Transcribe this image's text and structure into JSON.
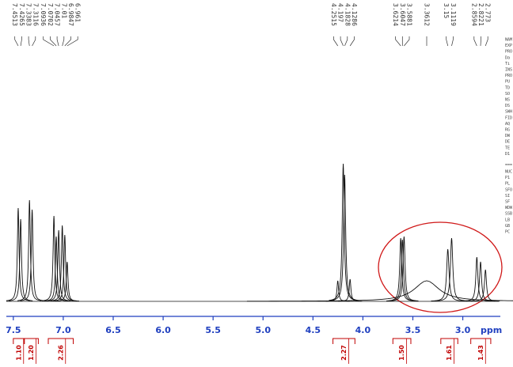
{
  "chart_data": {
    "type": "nmr",
    "xlim": [
      7.57,
      2.64
    ],
    "ylim": [
      0,
      100
    ],
    "xticks": [
      7.5,
      {
        "value": 7,
        "label": "7.0"
      },
      6.5,
      {
        "value": 6,
        "label": "6.0"
      },
      5.5,
      {
        "value": 5,
        "label": "5.0"
      },
      4.5,
      {
        "value": 4,
        "label": "4.0"
      },
      3.5,
      {
        "value": 3,
        "label": "3.0"
      }
    ],
    "xlabel": "ppm",
    "peaks": {
      "x": [
        7.4513,
        7.4265,
        7.3383,
        7.3116,
        7.0936,
        7.0702,
        7.0457,
        7.01,
        6.9847,
        6.961,
        4.2515,
        4.197,
        4.1828,
        4.1286,
        3.6214,
        3.6047,
        3.5881,
        3.3612,
        3.15,
        3.1119,
        2.8594,
        2.8221,
        2.773
      ],
      "values": [
        59,
        52,
        64,
        58,
        54,
        41,
        45,
        48,
        42,
        25,
        13,
        87,
        80,
        14,
        40,
        39,
        41,
        13,
        33,
        40,
        28,
        25,
        20
      ],
      "widths": [
        0.01,
        0.01,
        0.01,
        0.01,
        0.01,
        0.01,
        0.01,
        0.01,
        0.01,
        0.01,
        0.01,
        0.012,
        0.012,
        0.01,
        0.012,
        0.012,
        0.012,
        0.15,
        0.014,
        0.014,
        0.012,
        0.012,
        0.012
      ],
      "color": "#111111"
    },
    "integrals": {
      "from": [
        7.5,
        7.39,
        7.15,
        4.3,
        3.7,
        3.22,
        2.92
      ],
      "to": [
        7.39,
        7.25,
        6.9,
        4.08,
        3.52,
        3.05,
        2.72
      ],
      "values": [
        1.1,
        1.2,
        2.26,
        2.27,
        1.5,
        1.61,
        1.43
      ],
      "value_labels": [
        "1.10",
        "1.20",
        "2.26",
        "2.27",
        "1.50",
        "1.61",
        "1.43"
      ],
      "color": "#c00000"
    },
    "params_acquisition": [
      "NAM",
      "EXP",
      "PRO",
      "Da",
      "Ti",
      "INS",
      "PRO",
      "PU",
      "TD",
      "SO",
      "NS",
      "DS",
      "SWH",
      "FID",
      "AQ",
      "RG",
      "DW",
      "DE",
      "TE",
      "D1"
    ],
    "params_separator": "===",
    "params_processing": [
      "NUC",
      "P1",
      "PL",
      "SFO",
      "SI",
      "SF",
      "WDW",
      "SSB",
      "LB",
      "GB",
      "PC"
    ]
  }
}
